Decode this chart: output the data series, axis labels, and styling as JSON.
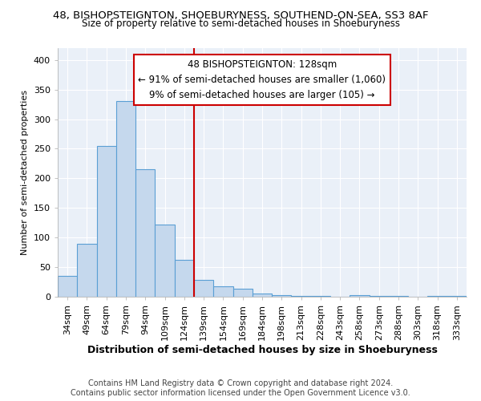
{
  "title": "48, BISHOPSTEIGNTON, SHOEBURYNESS, SOUTHEND-ON-SEA, SS3 8AF",
  "subtitle": "Size of property relative to semi-detached houses in Shoeburyness",
  "xlabel": "Distribution of semi-detached houses by size in Shoeburyness",
  "ylabel": "Number of semi-detached properties",
  "categories": [
    "34sqm",
    "49sqm",
    "64sqm",
    "79sqm",
    "94sqm",
    "109sqm",
    "124sqm",
    "139sqm",
    "154sqm",
    "169sqm",
    "184sqm",
    "198sqm",
    "213sqm",
    "228sqm",
    "243sqm",
    "258sqm",
    "273sqm",
    "288sqm",
    "303sqm",
    "318sqm",
    "333sqm"
  ],
  "values": [
    35,
    90,
    255,
    330,
    215,
    122,
    63,
    29,
    18,
    13,
    5,
    3,
    2,
    1,
    0,
    3,
    2,
    2,
    0,
    2,
    2
  ],
  "bar_color": "#c5d8ed",
  "bar_edge_color": "#5a9fd4",
  "vline_color": "#cc0000",
  "vline_x_index": 6.5,
  "annotation_line1": "48 BISHOPSTEIGNTON: 128sqm",
  "annotation_line2": "← 91% of semi-detached houses are smaller (1,060)",
  "annotation_line3": "9% of semi-detached houses are larger (105) →",
  "annotation_box_color": "#ffffff",
  "annotation_box_edge": "#cc0000",
  "ylim": [
    0,
    420
  ],
  "yticks": [
    0,
    50,
    100,
    150,
    200,
    250,
    300,
    350,
    400
  ],
  "background_color": "#eaf0f8",
  "footer_text": "Contains HM Land Registry data © Crown copyright and database right 2024.\nContains public sector information licensed under the Open Government Licence v3.0.",
  "title_fontsize": 9.5,
  "subtitle_fontsize": 8.5,
  "xlabel_fontsize": 9,
  "ylabel_fontsize": 8,
  "tick_fontsize": 8,
  "annotation_fontsize": 8.5,
  "footer_fontsize": 7
}
